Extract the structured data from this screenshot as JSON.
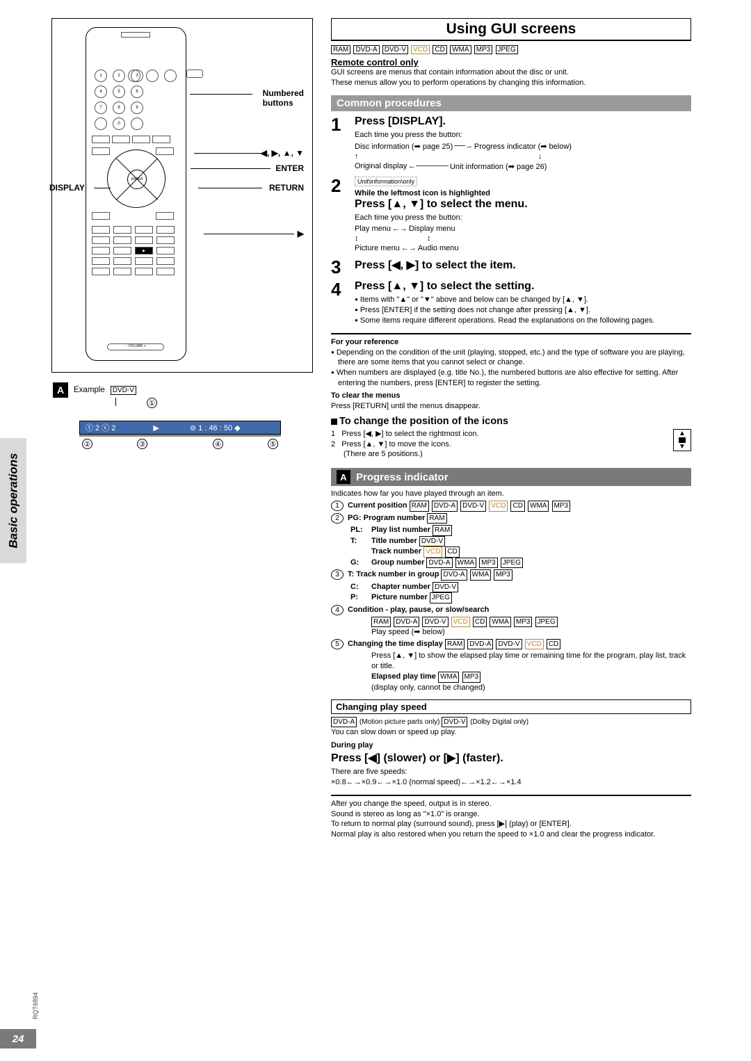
{
  "page": {
    "number": "24",
    "doc_code": "RQT6894",
    "side_tab": "Basic operations"
  },
  "title": "Using GUI screens",
  "formats_top": [
    "RAM",
    "DVD-A",
    "DVD-V",
    "VCD",
    "CD",
    "WMA",
    "MP3",
    "JPEG"
  ],
  "remote_only": "Remote control only",
  "intro_l1": "GUI screens are menus that contain information about the disc or unit.",
  "intro_l2": "These menus allow you to perform operations by changing this information.",
  "remote_labels": {
    "numbered": "Numbered",
    "buttons": "buttons",
    "arrows": "◀, ▶, ▲, ▼",
    "enter": "ENTER",
    "display": "DISPLAY",
    "return": "RETURN",
    "play": "▶"
  },
  "example": {
    "label": "Example",
    "fmt": "DVD-V",
    "letter": "A"
  },
  "osd": {
    "s1": "ⓣ 2 ⓒ 2",
    "s2": "▶",
    "s3": "⊘ 1 : 46 : 50  ◆"
  },
  "callouts": {
    "c1": "①",
    "c2": "②",
    "c3": "③",
    "c4": "④",
    "c5": "⑤"
  },
  "section1": "Common procedures",
  "step1": {
    "n": "1",
    "title": "Press [DISPLAY].",
    "sub": "Each time you press the button:",
    "f1a": "Disc information (➡ page 25)",
    "f1b": "Progress indicator (➡ below)",
    "f2a": "Original display",
    "f2b": "Unit information (➡ page 26)",
    "unitbox": "Unit\\information\\only"
  },
  "step2": {
    "n": "2",
    "note": "While the leftmost icon is highlighted",
    "title": "Press [▲, ▼] to select the menu.",
    "sub": "Each time you press the button:",
    "r1a": "Play menu",
    "r1b": "Display menu",
    "r2a": "Picture menu",
    "r2b": "Audio menu"
  },
  "step3": {
    "n": "3",
    "title": "Press [◀, ▶] to select the item."
  },
  "step4": {
    "n": "4",
    "title": "Press [▲, ▼] to select the setting.",
    "b1": "Items with \"▲\" or \"▼\" above and below can be changed by [▲, ▼].",
    "b2": "Press [ENTER] if the setting does not change after pressing [▲, ▼].",
    "b3": "Some items require different operations. Read the explanations on the following pages."
  },
  "ref": {
    "hdr": "For your reference",
    "b1": "Depending on the condition of the unit (playing, stopped, etc.) and the type of software you are playing, there are some items that you cannot select or change.",
    "b2": "When numbers are displayed (e.g. title No.), the numbered buttons are also effective for setting. After entering the numbers, press [ENTER] to register the setting.",
    "clear_hdr": "To clear the menus",
    "clear": "Press [RETURN] until the menus disappear."
  },
  "changepos": {
    "hdr": "To change the position of the icons",
    "l1": "Press [◀, ▶] to select the rightmost icon.",
    "l2": "Press [▲, ▼] to move the icons.",
    "l3": "(There are 5 positions.)"
  },
  "progA": {
    "letter": "A",
    "hdr": "Progress indicator"
  },
  "prog_intro": "Indicates how far you have played through an item.",
  "prog": {
    "i1": {
      "t": "Current position",
      "f": "RAM DVD-A DVD-V VCD CD WMA MP3"
    },
    "i2a": {
      "k": "PG:",
      "t": "Program number",
      "f": "RAM"
    },
    "i2b": {
      "k": "PL:",
      "t": "Play list number",
      "f": "RAM"
    },
    "i2c": {
      "k": "T:",
      "t": "Title number",
      "f": "DVD-V"
    },
    "i2d": {
      "k": "",
      "t": "Track number",
      "f": "VCD CD"
    },
    "i2e": {
      "k": "G:",
      "t": "Group number",
      "f": "DVD-A WMA MP3 JPEG"
    },
    "i3a": {
      "k": "T:",
      "t": "Track number in group",
      "f": "DVD-A WMA MP3"
    },
    "i3b": {
      "k": "C:",
      "t": "Chapter number",
      "f": "DVD-V"
    },
    "i3c": {
      "k": "P:",
      "t": "Picture number",
      "f": "JPEG"
    },
    "i4": {
      "t": "Condition - play, pause, or slow/search",
      "f": "RAM DVD-A DVD-V VCD CD WMA MP3 JPEG",
      "sub": "Play speed (➡ below)"
    },
    "i5": {
      "t": "Changing the time display",
      "f": "RAM DVD-A DVD-V VCD CD",
      "sub1": "Press [▲, ▼] to show the elapsed play time or remaining time for the program, play list, track or title.",
      "sub2": "Elapsed play time",
      "sub2f": "WMA MP3",
      "sub3": "(display only, cannot be changed)"
    }
  },
  "speed": {
    "box": "Changing play speed",
    "note": "DVD-A (Motion picture parts only)  DVD-V (Dolby Digital only)",
    "l1": "You can slow down or speed up play.",
    "during": "During play",
    "press": "Press [◀] (slower) or [▶] (faster).",
    "five": "There are five speeds:",
    "speeds": "×0.8←→×0.9←→×1.0 (normal speed)←→×1.2←→×1.4",
    "p1": "After you change the speed, output is in stereo.",
    "p2": "Sound is stereo as long as \"×1.0\" is orange.",
    "p3": "To return to normal play (surround sound), press [▶] (play) or [ENTER].",
    "p4": "Normal play is also restored when you return the speed to ×1.0 and clear the progress indicator."
  }
}
